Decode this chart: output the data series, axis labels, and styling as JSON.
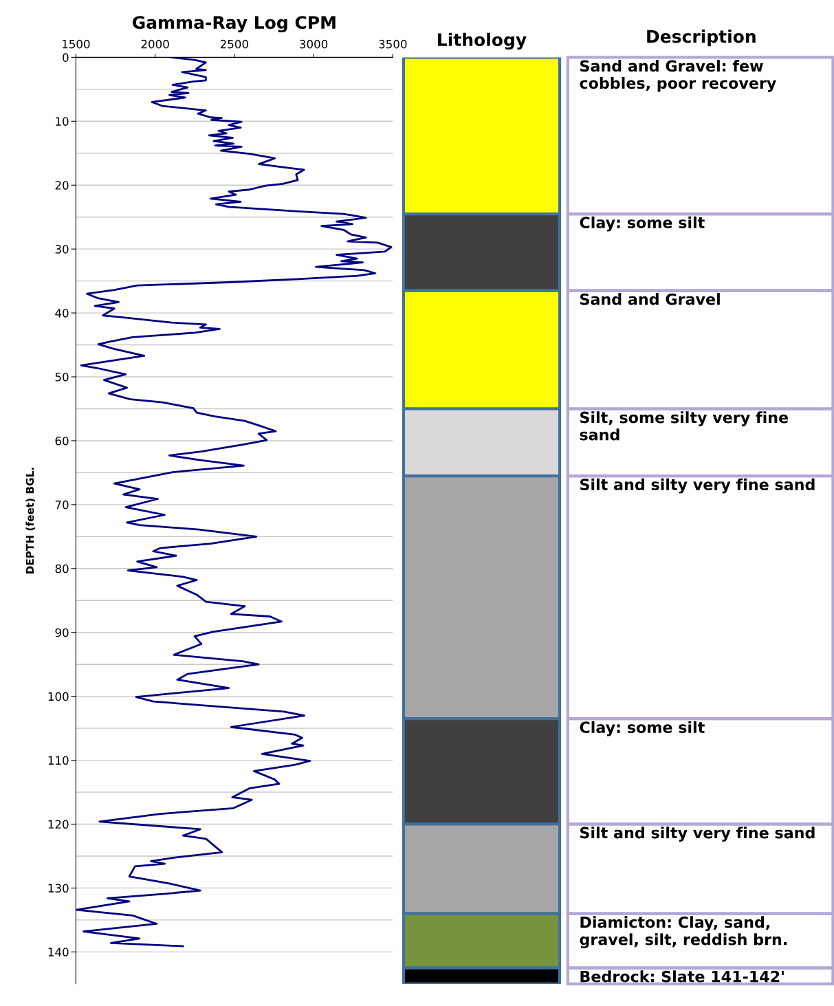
{
  "chart_data": [
    {
      "type": "line",
      "title": "Gamma-Ray Log CPM",
      "ylabel": "DEPTH (feet) BGL.",
      "xlim": [
        1500,
        3500
      ],
      "xticks": [
        1500,
        2000,
        2500,
        3000,
        3500
      ],
      "ylim": [
        145,
        0
      ],
      "yticks": [
        0,
        {
          "value": 5,
          "label": null
        },
        10,
        {
          "value": 15,
          "label": null
        },
        20,
        {
          "value": 25,
          "label": null
        },
        30,
        {
          "value": 35,
          "label": null
        },
        40,
        {
          "value": 45,
          "label": null
        },
        50,
        {
          "value": 55,
          "label": null
        },
        60,
        {
          "value": 65,
          "label": null
        },
        70,
        {
          "value": 75,
          "label": null
        },
        80,
        {
          "value": 85,
          "label": null
        },
        90,
        {
          "value": 95,
          "label": null
        },
        100,
        {
          "value": 105,
          "label": null
        },
        110,
        {
          "value": 115,
          "label": null
        },
        120,
        {
          "value": 125,
          "label": null
        },
        130,
        {
          "value": 135,
          "label": null
        },
        140
      ],
      "grid": "y",
      "line_style": "solid",
      "series": [
        {
          "color": "#000080",
          "x": [
            2100,
            2250,
            2320,
            2260,
            2320,
            2170,
            2320,
            2320,
            2240,
            2110,
            2205,
            2105,
            2210,
            2090,
            2190,
            1980,
            2045,
            2320,
            2270,
            2350,
            2420,
            2355,
            2545,
            2465,
            2540,
            2400,
            2450,
            2340,
            2490,
            2370,
            2495,
            2380,
            2545,
            2415,
            2595,
            2755,
            2655,
            2840,
            2940,
            2890,
            2900,
            2805,
            2695,
            2595,
            2465,
            2510,
            2350,
            2540,
            2385,
            2465,
            2900,
            3190,
            3330,
            3145,
            3245,
            3050,
            3190,
            3235,
            3330,
            3215,
            3405,
            3490,
            3450,
            3145,
            3275,
            3175,
            3310,
            3015,
            3320,
            3390,
            3275,
            2900,
            2465,
            1887,
            1743,
            1570,
            1640,
            1770,
            1620,
            1743,
            1670,
            1757,
            2104,
            2320,
            2285,
            2407,
            2250,
            1858,
            1714,
            1642,
            1736,
            1931,
            1533,
            1627,
            1814,
            1678,
            1822,
            1707,
            1844,
            2047,
            2241,
            2263,
            2378,
            2566,
            2653,
            2761,
            2653,
            2704,
            2552,
            2292,
            2090,
            2277,
            2559,
            2118,
            1743,
            1902,
            1800,
            2017,
            1815,
            2060,
            1822,
            1902,
            2277,
            2639,
            2350,
            2032,
            1988,
            2133,
            1887,
            2010,
            1829,
            2176,
            2263,
            2140,
            2263,
            2321,
            2566,
            2480,
            2725,
            2798,
            2610,
            2364,
            2249,
            2292,
            2119,
            2552,
            2653,
            2205,
            2140,
            2465,
            1880,
            1988,
            2812,
            2942,
            2480,
            2884,
            2928,
            2863,
            2935,
            2675,
            2978,
            2884,
            2624,
            2754,
            2783,
            2595,
            2487,
            2610,
            2494,
            2032,
            1649,
            2285,
            2176,
            2321,
            2422,
            2133,
            1974,
            2061,
            1873,
            1837,
            2090,
            2285,
            2061,
            1699,
            1837,
            1504,
            1858,
            2010,
            1548,
            1902,
            1721,
            2176
          ],
          "values": [
            0,
            0.4,
            0.8,
            1.8,
            2.0,
            2.3,
            3.1,
            3.6,
            3.8,
            4.3,
            4.7,
            5.4,
            5.6,
            5.9,
            6.3,
            7.0,
            7.6,
            8.3,
            8.8,
            9.4,
            9.5,
            9.8,
            10.1,
            10.6,
            11.0,
            11.5,
            11.9,
            12.2,
            12.6,
            13.1,
            13.5,
            13.8,
            14.0,
            14.6,
            15.1,
            15.8,
            16.7,
            17.3,
            17.6,
            18.3,
            19.2,
            19.8,
            20.1,
            20.7,
            21.0,
            21.5,
            22.1,
            22.6,
            23.0,
            23.4,
            24.1,
            24.5,
            25.1,
            25.7,
            26.1,
            26.4,
            27.0,
            27.7,
            28.2,
            28.8,
            29.0,
            29.7,
            30.4,
            30.9,
            31.5,
            31.9,
            32.1,
            32.8,
            33.3,
            33.8,
            34.2,
            34.7,
            35.2,
            35.7,
            36.4,
            37.0,
            37.7,
            38.3,
            38.9,
            39.3,
            40.4,
            40.6,
            41.5,
            41.8,
            42.3,
            42.5,
            43.1,
            43.8,
            44.5,
            44.9,
            45.6,
            46.7,
            48.2,
            48.6,
            49.6,
            50.5,
            51.7,
            52.6,
            53.5,
            54.0,
            54.9,
            55.6,
            56.2,
            56.9,
            57.6,
            58.5,
            58.9,
            59.9,
            60.6,
            61.7,
            62.3,
            63.0,
            63.9,
            64.9,
            66.7,
            67.6,
            68.4,
            69.1,
            70.4,
            71.6,
            72.8,
            73.2,
            73.9,
            75.0,
            76.1,
            76.8,
            77.3,
            78.0,
            78.9,
            79.8,
            80.3,
            81.3,
            81.8,
            82.7,
            84.1,
            85.2,
            85.9,
            87.1,
            87.5,
            88.3,
            89.0,
            89.9,
            90.6,
            91.8,
            93.5,
            94.5,
            95.0,
            96.5,
            97.4,
            98.7,
            100.1,
            100.8,
            102.4,
            103.0,
            104.8,
            106.0,
            106.5,
            107.4,
            107.7,
            109.0,
            110.1,
            110.7,
            111.7,
            113.0,
            113.7,
            114.4,
            115.8,
            116.2,
            117.5,
            118.4,
            119.6,
            120.8,
            121.8,
            122.3,
            124.4,
            125.2,
            125.8,
            126.2,
            126.6,
            128.2,
            129.3,
            130.4,
            130.9,
            131.6,
            132.1,
            133.4,
            134.3,
            135.6,
            136.8,
            137.9,
            138.6,
            139.1
          ]
        }
      ]
    },
    {
      "type": "bar",
      "title": "Lithology",
      "annotations": [
        "Description"
      ],
      "stacked": true,
      "categories": [
        null
      ],
      "ylim": [
        145,
        0
      ],
      "tick_labels": false,
      "series": [
        {
          "name": "Sand and Gravel: few cobbles, poor recovery",
          "color": "#ffff00",
          "values": [
            24.5
          ]
        },
        {
          "name": "Clay: some silt",
          "color": "#404040",
          "values": [
            12
          ]
        },
        {
          "name": "Sand and Gravel",
          "color": "#ffff00",
          "values": [
            18.5
          ]
        },
        {
          "name": "Silt, some silty very fine sand",
          "color": "#d9d9d9",
          "values": [
            10.5
          ]
        },
        {
          "name": "Silt and silty very fine sand",
          "color": "#a6a6a6",
          "values": [
            38
          ]
        },
        {
          "name": "Clay: some silt",
          "color": "#404040",
          "values": [
            16.5
          ]
        },
        {
          "name": "Silt and silty very fine sand",
          "color": "#a6a6a6",
          "values": [
            14
          ]
        },
        {
          "name": "Diamicton: Clay, sand, gravel, silt, reddish brn.",
          "color": "#77933c",
          "values": [
            8.5
          ]
        },
        {
          "name": "Bedrock: Slate 141-142'",
          "color": "#000000",
          "values": [
            2.5
          ]
        }
      ]
    }
  ]
}
